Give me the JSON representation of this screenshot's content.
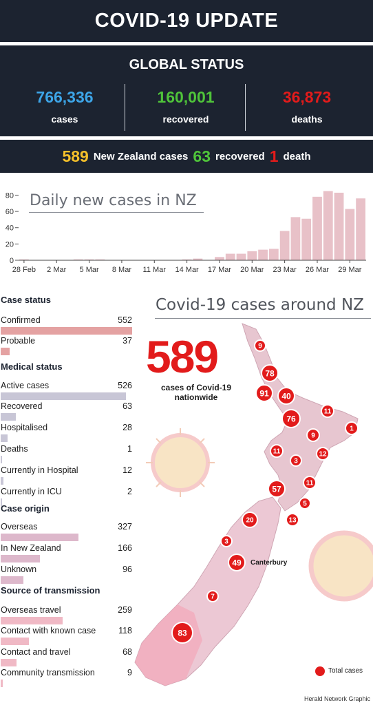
{
  "header": {
    "title": "COVID-19 UPDATE"
  },
  "global": {
    "title": "GLOBAL STATUS",
    "cases": {
      "value": "766,336",
      "label": "cases"
    },
    "recovered": {
      "value": "160,001",
      "label": "recovered"
    },
    "deaths": {
      "value": "36,873",
      "label": "deaths"
    }
  },
  "nz_summary": {
    "cases_value": "589",
    "cases_label": "New Zealand cases",
    "recovered_value": "63",
    "recovered_label": "recovered",
    "deaths_value": "1",
    "deaths_label": "death"
  },
  "chart_data": {
    "type": "bar",
    "title": "Daily new cases in NZ",
    "x_ticks": [
      "28 Feb",
      "2 Mar",
      "5 Mar",
      "8 Mar",
      "11 Mar",
      "14 Mar",
      "17 Mar",
      "20 Mar",
      "23 Mar",
      "26 Mar",
      "29 Mar"
    ],
    "y_ticks": [
      0,
      20,
      40,
      60,
      80
    ],
    "ylim": [
      0,
      88
    ],
    "categories": [
      "28 Feb",
      "29 Feb",
      "1 Mar",
      "2 Mar",
      "3 Mar",
      "4 Mar",
      "5 Mar",
      "6 Mar",
      "7 Mar",
      "8 Mar",
      "9 Mar",
      "10 Mar",
      "11 Mar",
      "12 Mar",
      "13 Mar",
      "14 Mar",
      "15 Mar",
      "16 Mar",
      "17 Mar",
      "18 Mar",
      "19 Mar",
      "20 Mar",
      "21 Mar",
      "22 Mar",
      "23 Mar",
      "24 Mar",
      "25 Mar",
      "26 Mar",
      "27 Mar",
      "28 Mar",
      "29 Mar",
      "30 Mar"
    ],
    "values": [
      1,
      0,
      0,
      0,
      0,
      1,
      1,
      1,
      0,
      0,
      0,
      0,
      0,
      0,
      0,
      1,
      2,
      0,
      4,
      8,
      8,
      11,
      13,
      14,
      36,
      53,
      51,
      78,
      85,
      83,
      63,
      76
    ],
    "bar_color": "#e8c1c8",
    "grid": false
  },
  "stats": {
    "case_status": {
      "title": "Case status",
      "rows": [
        {
          "label": "Confirmed",
          "value": "552",
          "frac": 1.0
        },
        {
          "label": "Probable",
          "value": "37",
          "frac": 0.067
        }
      ]
    },
    "medical_status": {
      "title": "Medical status",
      "rows": [
        {
          "label": "Active cases",
          "value": "526",
          "frac": 0.953
        },
        {
          "label": "Recovered",
          "value": "63",
          "frac": 0.114
        },
        {
          "label": "Hospitalised",
          "value": "28",
          "frac": 0.051
        },
        {
          "label": "Deaths",
          "value": "1",
          "frac": 0.0
        },
        {
          "label": "Currently in Hospital",
          "value": "12",
          "frac": 0.022
        },
        {
          "label": "Currently in ICU",
          "value": "2",
          "frac": 0.004
        }
      ]
    },
    "case_origin": {
      "title": "Case origin",
      "rows": [
        {
          "label": "Overseas",
          "value": "327",
          "frac": 0.592
        },
        {
          "label": "In New Zealand",
          "value": "166",
          "frac": 0.301
        },
        {
          "label": "Unknown",
          "value": "96",
          "frac": 0.174
        }
      ]
    },
    "transmission": {
      "title": "Source of transmission",
      "rows": [
        {
          "label": "Overseas travel",
          "value": "259",
          "frac": 0.469
        },
        {
          "label": "Contact with known case",
          "value": "118",
          "frac": 0.214
        },
        {
          "label": "Contact and travel",
          "value": "68",
          "frac": 0.123
        },
        {
          "label": "Community transmission",
          "value": "9",
          "frac": 0.016
        }
      ]
    }
  },
  "colors": {
    "case_status_bar": "#e4a2a2",
    "medical_bar": "#c8c6d6",
    "origin_bar": "#ddb8cb",
    "transmission_bar": "#f0b9c5",
    "accent_red": "#e21b1b",
    "banner": "#1c2330"
  },
  "map": {
    "title": "Covid-19 cases around NZ",
    "total": "589",
    "total_label": "cases of Covid-19 nationwide",
    "region_label": "Canterbury",
    "legend_label": "Total cases",
    "bubbles": [
      "9",
      "78",
      "91",
      "40",
      "76",
      "11",
      "1",
      "9",
      "11",
      "3",
      "12",
      "11",
      "57",
      "5",
      "13",
      "20",
      "3",
      "49",
      "7",
      "83"
    ]
  },
  "credit": "Herald Network Graphic"
}
